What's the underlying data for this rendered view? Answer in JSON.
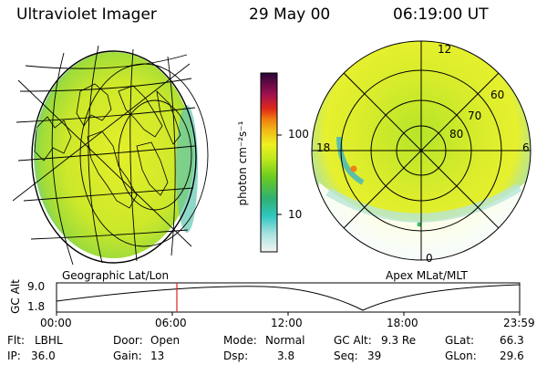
{
  "header": {
    "instrument": "Ultraviolet Imager",
    "date": "29 May 00",
    "time": "06:19:00 UT"
  },
  "left_panel": {
    "label": "Geographic Lat/Lon"
  },
  "right_panel": {
    "label": "Apex MLat/MLT",
    "mlt_labels": {
      "top": "12",
      "left": "18",
      "right": "6",
      "bottom": "0"
    },
    "lat_labels": [
      "60",
      "70",
      "80"
    ]
  },
  "colorbar": {
    "unit": "photon cm⁻²s⁻¹",
    "ticks": [
      "100",
      "10"
    ],
    "colors": [
      "#f0f0f0",
      "#9be0dc",
      "#2ec8c0",
      "#2aa85c",
      "#7ad21a",
      "#e8f020",
      "#f0a010",
      "#e0201a",
      "#a01060",
      "#3a0848"
    ]
  },
  "altitude_strip": {
    "y_label": "GC Alt",
    "y_ticks": [
      "9.0",
      "1.8"
    ],
    "x_ticks": [
      "00:00",
      "06:00",
      "12:00",
      "18:00",
      "23:59"
    ],
    "current_time_marker": "06:00"
  },
  "status": {
    "row1": [
      {
        "label": "Flt:",
        "value": "LBHL"
      },
      {
        "label": "Door:",
        "value": "Open"
      },
      {
        "label": "Mode:",
        "value": "Normal"
      },
      {
        "label": "GC Alt:",
        "value": "9.3 Re"
      },
      {
        "label": "GLat:",
        "value": "66.3"
      }
    ],
    "row2": [
      {
        "label": "IP:",
        "value": "36.0"
      },
      {
        "label": "Gain:",
        "value": "13"
      },
      {
        "label": "Dsp:",
        "value": "3.8"
      },
      {
        "label": "Seq:",
        "value": "39"
      },
      {
        "label": "GLon:",
        "value": "29.6"
      }
    ]
  }
}
